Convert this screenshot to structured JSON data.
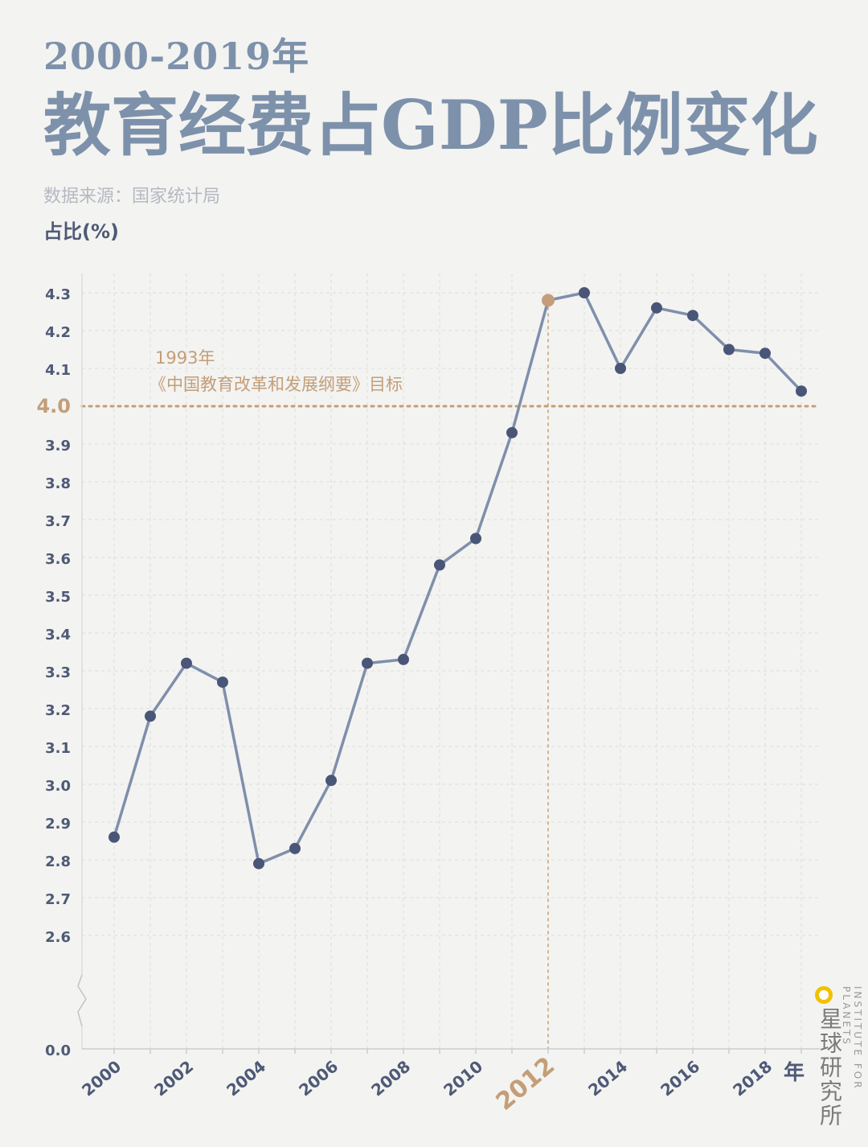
{
  "header": {
    "year_range": "2000-2019年",
    "title": "教育经费占GDP比例变化",
    "source": "数据来源：国家统计局"
  },
  "colors": {
    "line": "#7f8fab",
    "point": "#4a5677",
    "highlight": "#c39e78",
    "axis_text": "#4e5a76",
    "grid": "#dcdcdc",
    "title": "#7d91ab"
  },
  "chart_data": {
    "type": "line",
    "ylabel": "占比(%)",
    "xlabel": "年",
    "x": [
      2000,
      2001,
      2002,
      2003,
      2004,
      2005,
      2006,
      2007,
      2008,
      2009,
      2010,
      2011,
      2012,
      2013,
      2014,
      2015,
      2016,
      2017,
      2018,
      2019
    ],
    "values": [
      2.86,
      3.18,
      3.32,
      3.27,
      2.79,
      2.83,
      3.01,
      3.32,
      3.33,
      3.58,
      3.65,
      3.93,
      4.28,
      4.3,
      4.1,
      4.26,
      4.24,
      4.15,
      4.14,
      4.04
    ],
    "highlight_x": 2012,
    "x_tick_labels": [
      "2000",
      "2002",
      "2004",
      "2006",
      "2008",
      "2010",
      "2012",
      "2014",
      "2016",
      "2018"
    ],
    "y_ticks": [
      0.0,
      2.6,
      2.7,
      2.8,
      2.9,
      3.0,
      3.1,
      3.2,
      3.3,
      3.4,
      3.5,
      3.6,
      3.7,
      3.8,
      3.9,
      4.0,
      4.1,
      4.2,
      4.3
    ],
    "y_tick_labels": [
      "0.0",
      "2.6",
      "2.7",
      "2.8",
      "2.9",
      "3.0",
      "3.1",
      "3.2",
      "3.3",
      "3.4",
      "3.5",
      "3.6",
      "3.7",
      "3.8",
      "3.9",
      "4.0",
      "4.1",
      "4.2",
      "4.3"
    ],
    "ylim": [
      2.5,
      4.3
    ],
    "axis_break": true,
    "reference_line": {
      "value": 4.0,
      "label": "4.0",
      "annotation_line1": "1993年",
      "annotation_line2": "《中国教育改革和发展纲要》目标"
    },
    "grid": true
  },
  "brand": {
    "name": "星球研究所",
    "name_en": "INSTITUTE FOR PLANETS"
  }
}
